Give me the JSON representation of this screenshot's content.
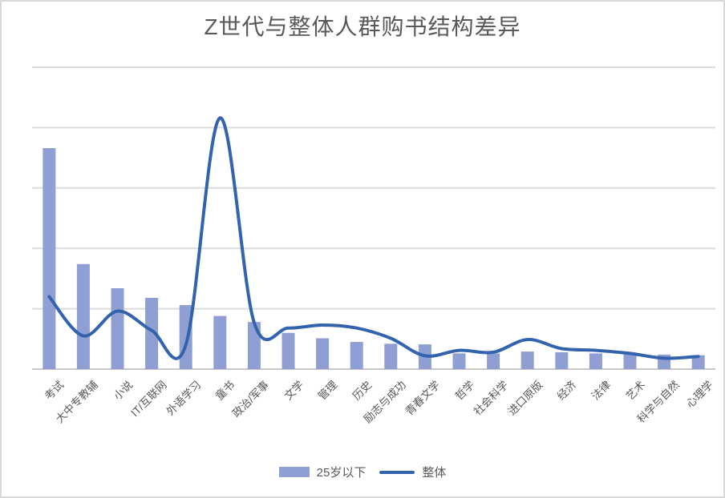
{
  "chart": {
    "title": "Z世代与整体人群购书结构差异",
    "legend": {
      "bar_label": "25岁以下",
      "line_label": "整体"
    },
    "colors": {
      "bar": "#8f9fd3",
      "line": "#3463ae",
      "gridline": "#dcdcdc",
      "axis_line": "#c8c8c8",
      "text": "#595959",
      "card_border": "#d9d9d9",
      "background": "#ffffff"
    }
  },
  "chart_data": {
    "type": "bar",
    "combo": "bar+line",
    "title": "Z世代与整体人群购书结构差异",
    "categories": [
      "考试",
      "大中专教辅",
      "小说",
      "IT/互联网",
      "外语学习",
      "童书",
      "政治/军事",
      "文学",
      "管理",
      "历史",
      "励志与成功",
      "青春文学",
      "哲学",
      "社会科学",
      "进口原版",
      "经济",
      "法律",
      "艺术",
      "科学与自然",
      "心理学"
    ],
    "series": [
      {
        "name": "25岁以下",
        "type": "bar",
        "values": [
          18.3,
          8.7,
          6.7,
          5.9,
          5.3,
          4.4,
          3.9,
          3.0,
          2.55,
          2.25,
          2.1,
          2.05,
          1.3,
          1.3,
          1.45,
          1.4,
          1.3,
          1.3,
          1.2,
          1.15
        ]
      },
      {
        "name": "整体",
        "type": "line",
        "values": [
          6.0,
          2.75,
          4.8,
          3.2,
          2.0,
          20.8,
          3.85,
          3.4,
          3.65,
          3.4,
          2.55,
          1.1,
          1.55,
          1.4,
          2.45,
          1.7,
          1.55,
          1.3,
          0.9,
          1.05
        ]
      }
    ],
    "xlabel": "",
    "ylabel": "",
    "ylim": [
      0,
      25
    ],
    "y_gridline_step": 5,
    "y_axis_tick_labels_visible": false,
    "grid": "horizontal",
    "line_smoothing": true,
    "legend_position": "bottom"
  }
}
